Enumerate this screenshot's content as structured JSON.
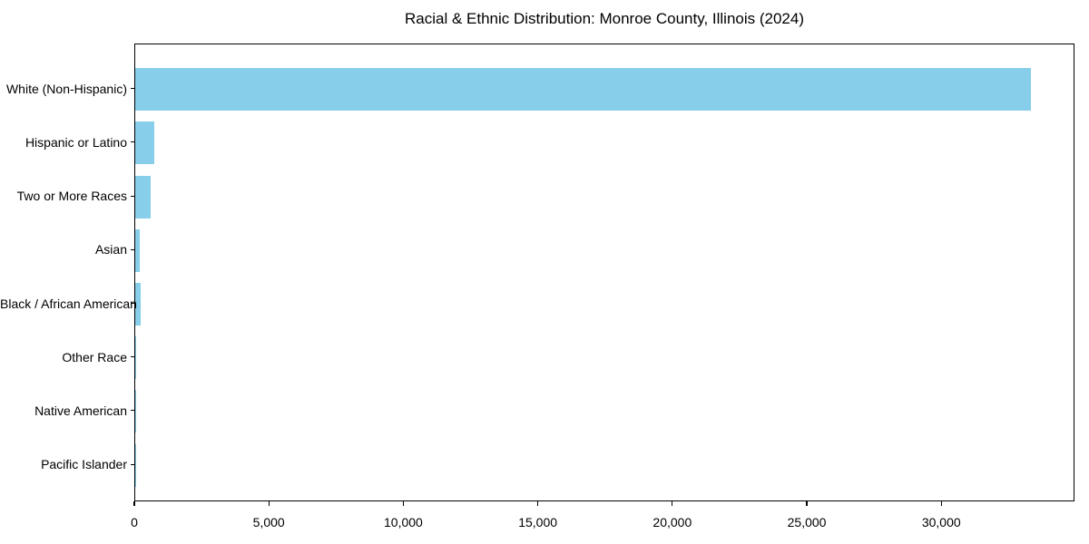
{
  "chart_data": {
    "type": "bar",
    "orientation": "horizontal",
    "title": "Racial & Ethnic Distribution: Monroe County, Illinois (2024)",
    "categories": [
      "White (Non-Hispanic)",
      "Hispanic or Latino",
      "Two or More Races",
      "Asian",
      "Black / African American",
      "Other Race",
      "Native American",
      "Pacific Islander"
    ],
    "values": [
      33300,
      710,
      590,
      170,
      215,
      40,
      20,
      10
    ],
    "xlabel": "",
    "ylabel": "",
    "xlim": [
      0,
      34950
    ],
    "x_ticks": [
      0,
      5000,
      10000,
      15000,
      20000,
      25000,
      30000
    ],
    "x_tick_labels": [
      "0",
      "5,000",
      "10,000",
      "15,000",
      "20,000",
      "25,000",
      "30,000"
    ],
    "bar_color": "#87CEEB",
    "background_color": "#FFFFFF",
    "text_color": "#000000",
    "grid": false,
    "legend": false
  }
}
